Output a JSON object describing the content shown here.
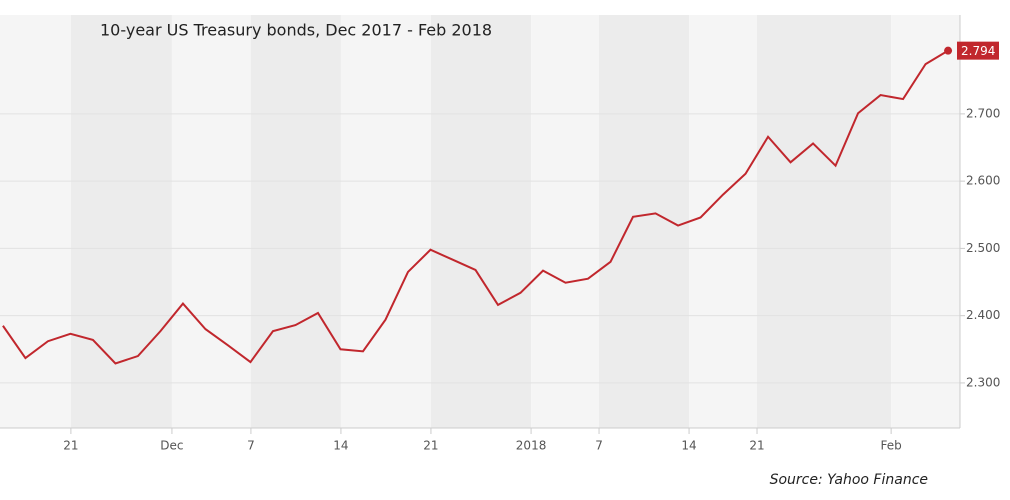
{
  "chart_data": {
    "type": "line",
    "title": "10-year US Treasury bonds, Dec 2017 - Feb 2018",
    "source": "Source: Yahoo Finance",
    "x": [
      0,
      1,
      2,
      3,
      4,
      5,
      6,
      7,
      8,
      9,
      10,
      11,
      12,
      13,
      14,
      15,
      16,
      17,
      18,
      19,
      20,
      21,
      22,
      23,
      24,
      25,
      26,
      27,
      28,
      29,
      30,
      31,
      32,
      33,
      34,
      35,
      36,
      37,
      38,
      39,
      40,
      41,
      42
    ],
    "series": [
      {
        "color": "#c1272d",
        "values": [
          2.385,
          2.337,
          2.362,
          2.373,
          2.364,
          2.329,
          2.34,
          2.377,
          2.418,
          2.38,
          2.356,
          2.331,
          2.377,
          2.386,
          2.404,
          2.35,
          2.347,
          2.394,
          2.465,
          2.498,
          2.483,
          2.468,
          2.416,
          2.434,
          2.467,
          2.449,
          2.455,
          2.48,
          2.547,
          2.552,
          2.534,
          2.546,
          2.58,
          2.611,
          2.666,
          2.628,
          2.656,
          2.623,
          2.701,
          2.728,
          2.722,
          2.774,
          2.794
        ]
      }
    ],
    "xlim": [
      -0.13,
      42.53
    ],
    "xticks": [
      {
        "value": 3.02,
        "label": "21"
      },
      {
        "value": 7.51,
        "label": "Dec"
      },
      {
        "value": 11.02,
        "label": "7"
      },
      {
        "value": 15.02,
        "label": "14"
      },
      {
        "value": 19.02,
        "label": "21"
      },
      {
        "value": 23.47,
        "label": "2018"
      },
      {
        "value": 26.49,
        "label": "7"
      },
      {
        "value": 30.49,
        "label": "14"
      },
      {
        "value": 33.51,
        "label": "21"
      },
      {
        "value": 39.47,
        "label": "Feb"
      }
    ],
    "ylim": [
      2.233,
      2.847
    ],
    "yticks": [
      {
        "value": 2.3,
        "label": "2.300"
      },
      {
        "value": 2.4,
        "label": "2.400"
      },
      {
        "value": 2.5,
        "label": "2.500"
      },
      {
        "value": 2.6,
        "label": "2.600"
      },
      {
        "value": 2.7,
        "label": "2.700"
      }
    ],
    "grid": true
  }
}
